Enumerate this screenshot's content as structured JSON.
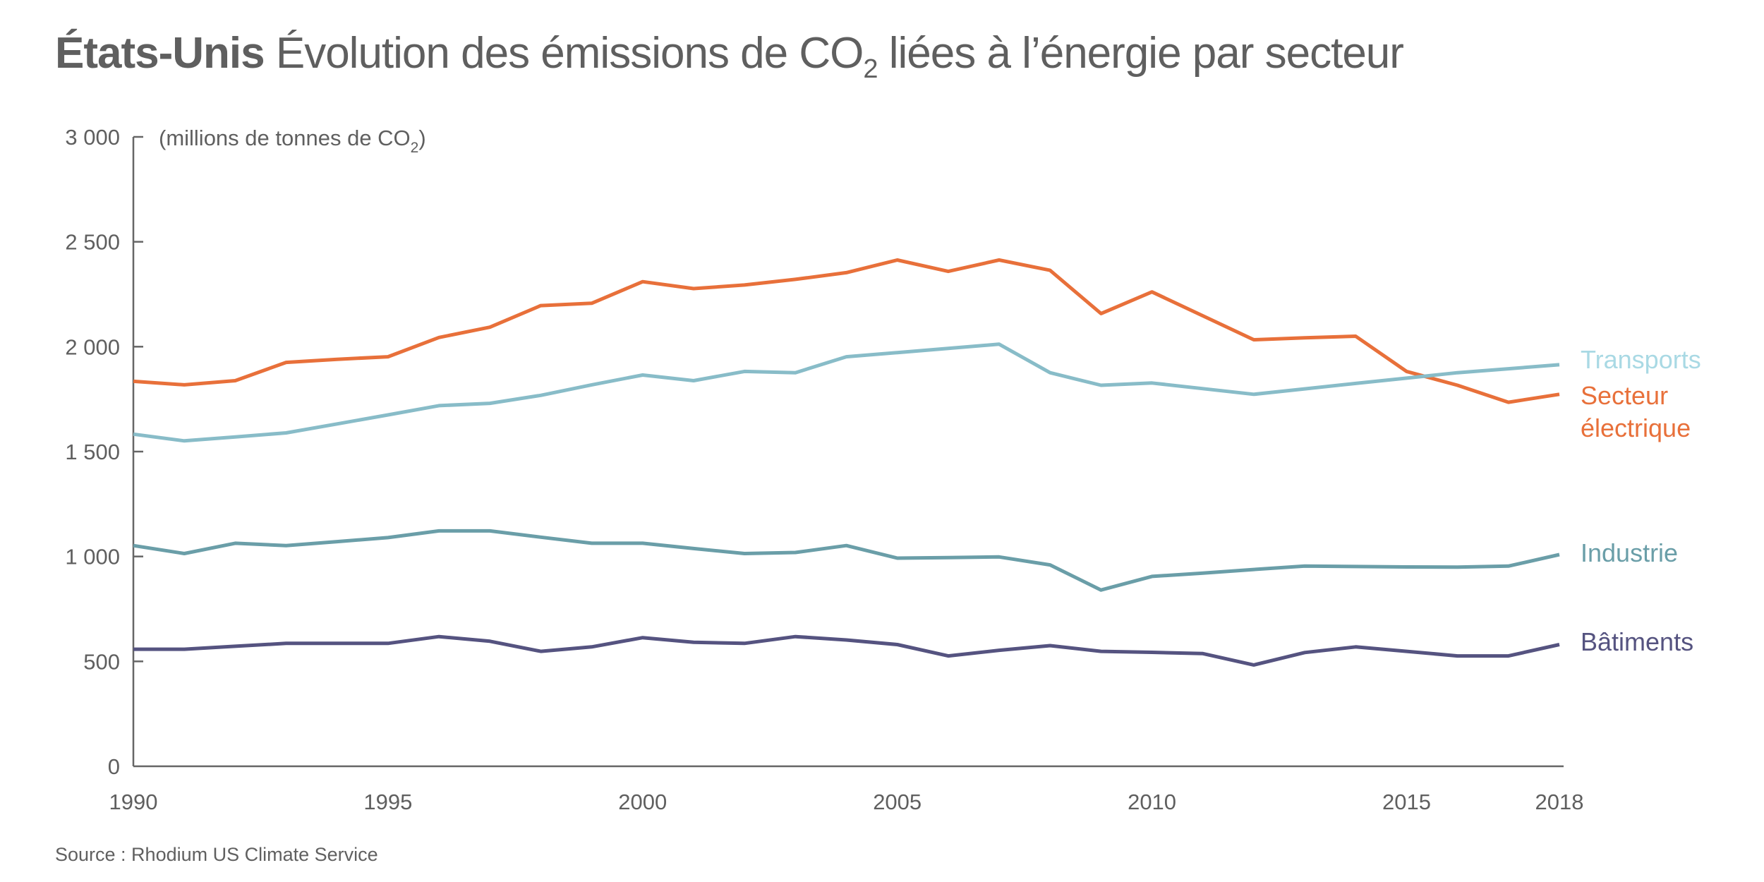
{
  "title": {
    "bold": "États-Unis",
    "text_before_sub": " Évolution des émissions de CO",
    "sub": "2",
    "text_after_sub": " liées à l’énergie par secteur"
  },
  "source": "Source : Rhodium US Climate Service",
  "chart_data": {
    "type": "line",
    "title": "États-Unis Évolution des émissions de CO2 liées à l’énergie par secteur",
    "ylabel": "(millions de tonnes de CO2)",
    "ylabel_main": "(millions de tonnes de CO",
    "ylabel_sub": "2",
    "ylabel_close": ")",
    "xlabel": "",
    "xlim": [
      1990,
      2018
    ],
    "ylim": [
      0,
      3000
    ],
    "grid": false,
    "legend_placement": "right, inline labels at line ends",
    "x_ticks": [
      1990,
      1995,
      2000,
      2005,
      2010,
      2015,
      2018
    ],
    "x_tick_labels": [
      "1990",
      "1995",
      "2000",
      "2005",
      "2010",
      "2015",
      "2018"
    ],
    "y_ticks": [
      0,
      500,
      1000,
      1500,
      2000,
      2500,
      3000
    ],
    "y_tick_labels": [
      "0",
      "500",
      "1 000",
      "1 500",
      "2 000",
      "2 500",
      "3 000"
    ],
    "x": [
      1990,
      1991,
      1992,
      1993,
      1994,
      1995,
      1996,
      1997,
      1998,
      1999,
      2000,
      2001,
      2002,
      2003,
      2004,
      2005,
      2006,
      2007,
      2008,
      2009,
      2010,
      2011,
      2012,
      2013,
      2014,
      2015,
      2016,
      2017,
      2018
    ],
    "series": [
      {
        "name": "Secteur électrique",
        "label_lines": [
          "Secteur",
          "électrique"
        ],
        "color": "#e8703a",
        "label_color": "#e8703a",
        "values": [
          1835,
          1818,
          1838,
          1925,
          1940,
          1952,
          2044,
          2093,
          2196,
          2207,
          2310,
          2277,
          2294,
          2321,
          2353,
          2413,
          2359,
          2413,
          2364,
          2158,
          2261,
          2147,
          2033,
          2042,
          2050,
          1882,
          1816,
          1735,
          1773
        ]
      },
      {
        "name": "Transports",
        "label_lines": [
          "Transports"
        ],
        "color": "#88bcc8",
        "label_color": "#a9d9e4",
        "values": [
          1583,
          1551,
          1570,
          1589,
          1632,
          1675,
          1719,
          1730,
          1768,
          1818,
          1865,
          1838,
          1882,
          1876,
          1952,
          1972,
          1992,
          2012,
          1876,
          1816,
          1827,
          1800,
          1773,
          1799,
          1825,
          1850,
          1876,
          1895,
          1914
        ]
      },
      {
        "name": "Industrie",
        "label_lines": [
          "Industrie"
        ],
        "color": "#6a9ea8",
        "label_color": "#6a9ea8",
        "values": [
          1052,
          1014,
          1063,
          1052,
          1071,
          1090,
          1122,
          1122,
          1092,
          1063,
          1063,
          1038,
          1014,
          1019,
          1052,
          992,
          995,
          998,
          960,
          840,
          905,
          921,
          938,
          954,
          952,
          950,
          949,
          954,
          1009
        ]
      },
      {
        "name": "Bâtiments",
        "label_lines": [
          "Bâtiments"
        ],
        "color": "#555380",
        "label_color": "#555380",
        "values": [
          558,
          558,
          572,
          586,
          586,
          586,
          618,
          596,
          548,
          569,
          613,
          591,
          586,
          618,
          602,
          580,
          526,
          553,
          575,
          548,
          543,
          537,
          483,
          542,
          569,
          548,
          526,
          526,
          580
        ]
      }
    ]
  }
}
